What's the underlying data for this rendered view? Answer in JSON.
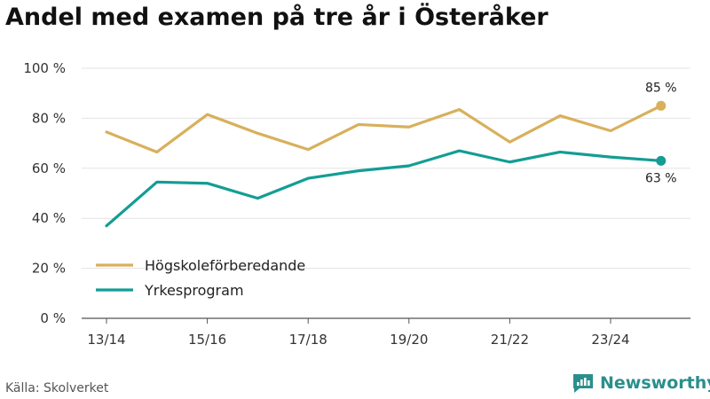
{
  "title": "Andel med examen på tre år i Österåker",
  "source": "Källa: Skolverket",
  "brand": {
    "name": "Newsworthy",
    "icon": "newsworthy-logo-icon"
  },
  "chart_data": {
    "type": "line",
    "title": "Andel med examen på tre år i Österåker",
    "x": [
      "13/14",
      "14/15",
      "15/16",
      "16/17",
      "17/18",
      "18/19",
      "19/20",
      "20/21",
      "21/22",
      "22/23",
      "23/24",
      "24/25"
    ],
    "x_tick_labels": [
      "13/14",
      "15/16",
      "17/18",
      "19/20",
      "21/22",
      "23/24"
    ],
    "y_tick_labels": [
      "0 %",
      "20 %",
      "40 %",
      "60 %",
      "80 %",
      "100 %"
    ],
    "ylim": [
      0,
      100
    ],
    "yticks": [
      0,
      20,
      40,
      60,
      80,
      100
    ],
    "grid": true,
    "legend_position": "bottom-left",
    "series": [
      {
        "name": "Högskoleförberedande",
        "color": "#d8b05c",
        "values": [
          74.5,
          66.5,
          81.5,
          74,
          67.5,
          77.5,
          76.5,
          83.5,
          70.5,
          81,
          75,
          85
        ],
        "end_label": "85 %"
      },
      {
        "name": "Yrkesprogram",
        "color": "#139d94",
        "values": [
          37,
          54.5,
          54,
          48,
          56,
          59,
          61,
          67,
          62.5,
          66.5,
          64.5,
          63
        ],
        "end_label": "63 %"
      }
    ]
  }
}
